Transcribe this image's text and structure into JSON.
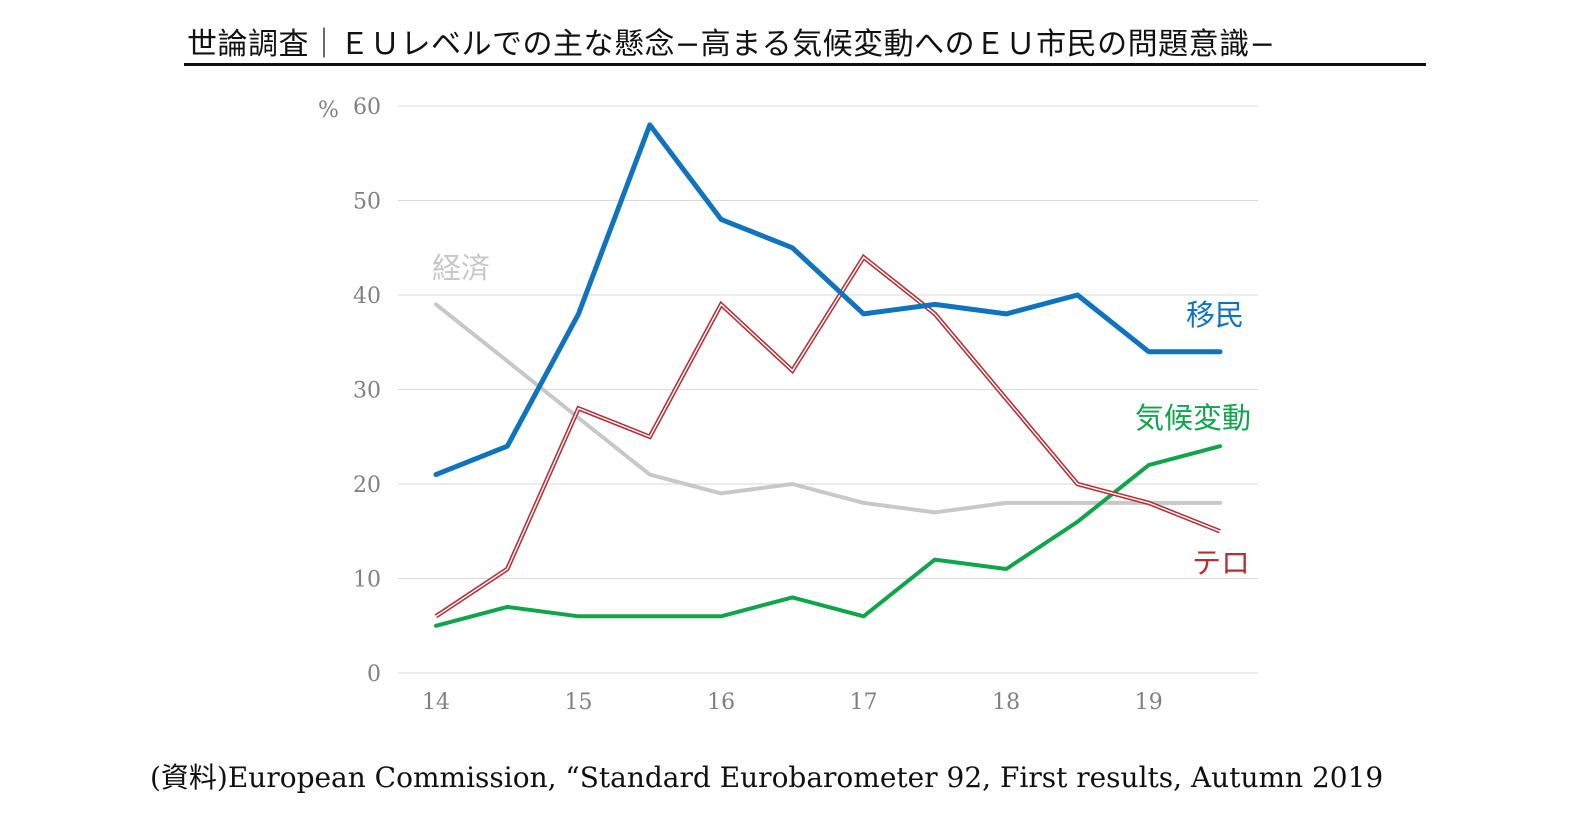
{
  "title": "世論調査｜ＥＵレベルでの主な懸念−高まる気候変動へのＥＵ市民の問題意識−",
  "source": "(資料)European Commission, “Standard Eurobarometer 92, First results, Autumn 2019",
  "chart_data": {
    "type": "line",
    "title": "世論調査｜ＥＵレベルでの主な懸念−高まる気候変動へのＥＵ市民の問題意識−",
    "ylabel": "%",
    "xlabel": "",
    "ylim": [
      0,
      60
    ],
    "yticks": [
      "0",
      "10",
      "20",
      "30",
      "40",
      "50",
      "60"
    ],
    "xticks": [
      "14",
      "15",
      "16",
      "17",
      "18",
      "19"
    ],
    "x_points": [
      "14",
      "14.5",
      "15",
      "15.5",
      "16",
      "16.5",
      "17",
      "17.5",
      "18",
      "18.5",
      "19",
      "19.5"
    ],
    "grid": true,
    "legend": "direct labels",
    "series": [
      {
        "name": "移民",
        "color": "#0f73be",
        "values": [
          21,
          24,
          38,
          58,
          48,
          45,
          38,
          39,
          38,
          40,
          34,
          34
        ]
      },
      {
        "name": "テロ",
        "color": "#b62f35",
        "values": [
          6,
          11,
          28,
          25,
          39,
          32,
          44,
          38,
          29,
          20,
          18,
          15
        ]
      },
      {
        "name": "経済",
        "color": "#c8c8c8",
        "values": [
          39,
          33,
          27,
          21,
          19,
          20,
          18,
          17,
          18,
          18,
          18,
          18
        ]
      },
      {
        "name": "気候変動",
        "color": "#10a54b",
        "values": [
          5,
          7,
          6,
          6,
          6,
          8,
          6,
          12,
          11,
          16,
          22,
          24
        ]
      }
    ]
  }
}
